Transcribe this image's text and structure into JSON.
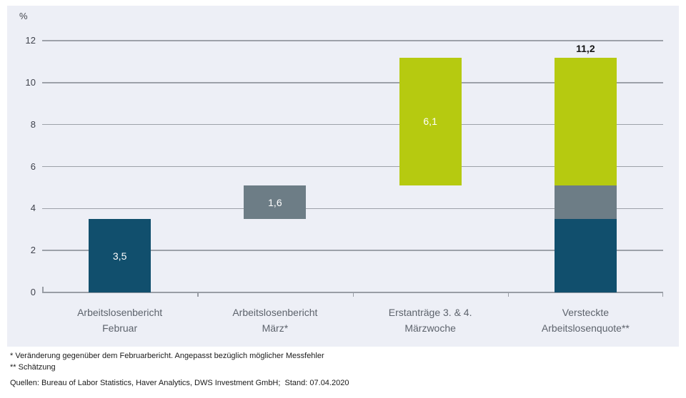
{
  "chart": {
    "unit_label": "%",
    "panel_bg": "#edeff6",
    "grid_color": "#9da1a9",
    "axis_color": "#999da5"
  },
  "chart_data": {
    "type": "bar",
    "stacked": true,
    "title": "",
    "xlabel": "",
    "ylabel": "%",
    "ylim": [
      0,
      12
    ],
    "yticks": [
      0,
      2,
      4,
      6,
      8,
      10,
      12
    ],
    "grid": true,
    "legend": "none",
    "categories": [
      "Arbeitslosenbericht Februar",
      "Arbeitslosenbericht März*",
      "Erstanträge 3. & 4. Märzwoche",
      "Versteckte Arbeitslosenquote**"
    ],
    "category_labels": [
      "Arbeitslosenbericht\nFebruar",
      "Arbeitslosenbericht\nMärz*",
      "Erstanträge 3. & 4.\nMärzwoche",
      "Versteckte\nArbeitslosenquote**"
    ],
    "bars": [
      {
        "start": 0,
        "segments": [
          {
            "value": 3.5,
            "color_key": "blue",
            "label": "3,5"
          }
        ]
      },
      {
        "start": 3.5,
        "segments": [
          {
            "value": 1.6,
            "color_key": "gray",
            "label": "1,6"
          }
        ]
      },
      {
        "start": 5.1,
        "segments": [
          {
            "value": 6.1,
            "color_key": "green",
            "label": "6,1"
          }
        ]
      },
      {
        "start": 0,
        "segments": [
          {
            "value": 3.5,
            "color_key": "blue"
          },
          {
            "value": 1.6,
            "color_key": "gray"
          },
          {
            "value": 6.1,
            "color_key": "green"
          }
        ],
        "total_label": "11,2"
      }
    ],
    "colors": {
      "blue": "#114f6d",
      "gray": "#6d7d86",
      "green": "#b6ca10"
    },
    "value_label_color": "#ffffff",
    "total_label_color": "#141414"
  },
  "footnotes": {
    "line1": "* Veränderung gegenüber dem Februarbericht. Angepasst bezüglich möglicher Messfehler",
    "line2": "** Schätzung",
    "source": "Quellen: Bureau of Labor Statistics, Haver Analytics, DWS Investment GmbH;  Stand: 07.04.2020"
  }
}
